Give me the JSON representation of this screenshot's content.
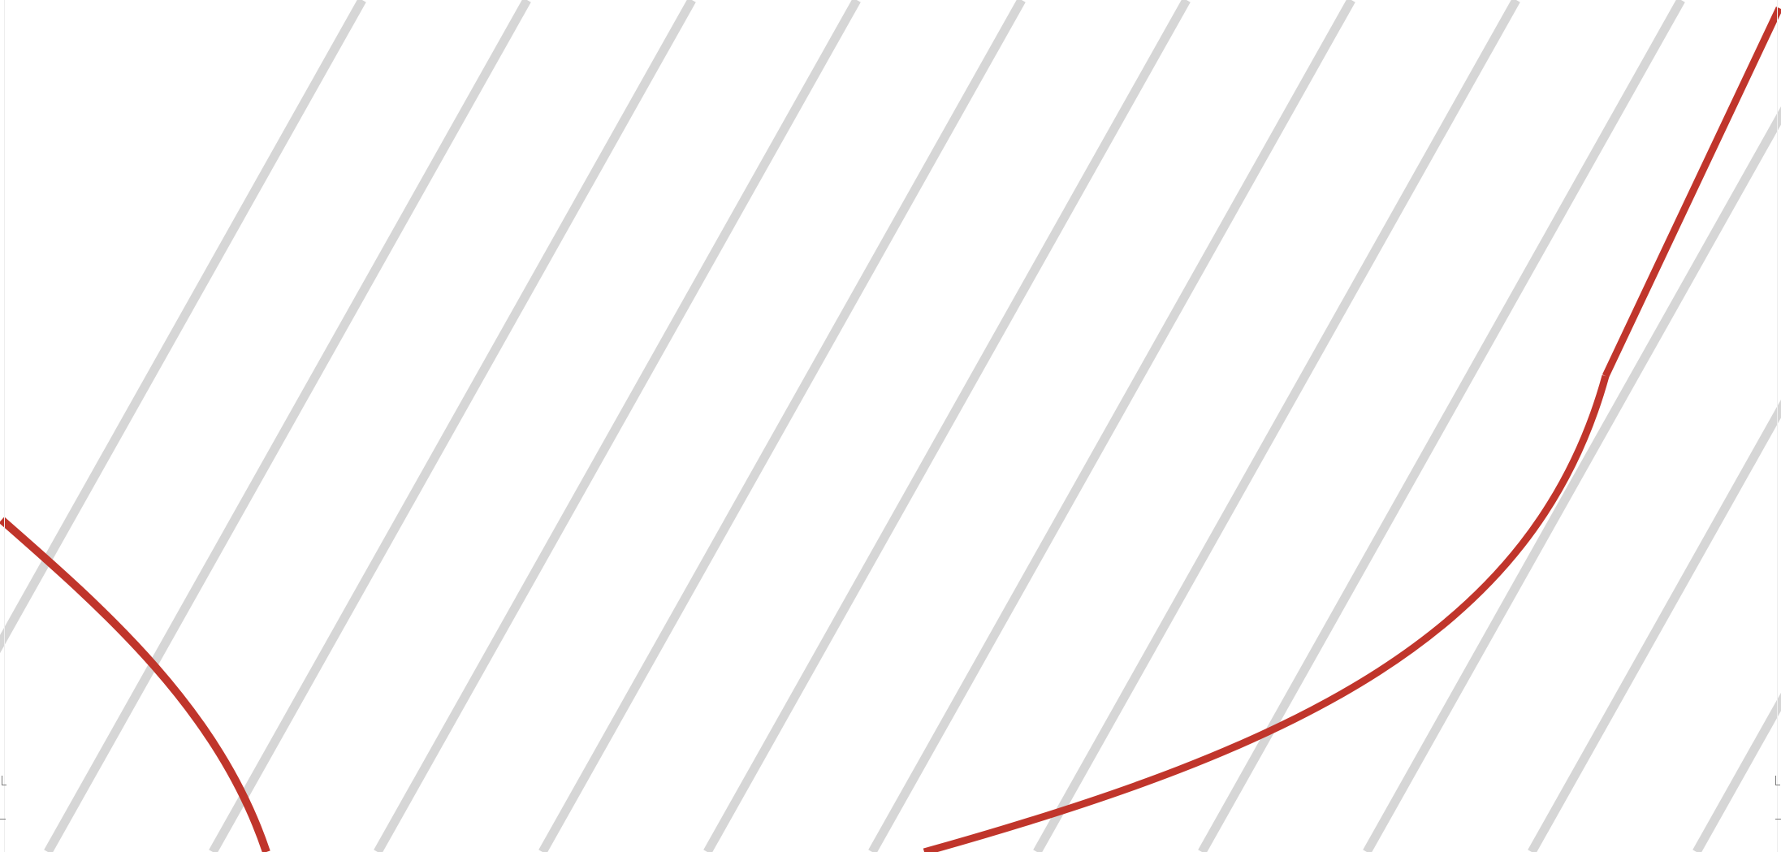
{
  "colors": {
    "background": "#ffffff",
    "hatch_line": "#d6d6d6",
    "curve": "#c0352b",
    "corner_mark": "#7a7a7a"
  },
  "scene": {
    "hatch_line_count": 15,
    "curve_count": 3
  }
}
